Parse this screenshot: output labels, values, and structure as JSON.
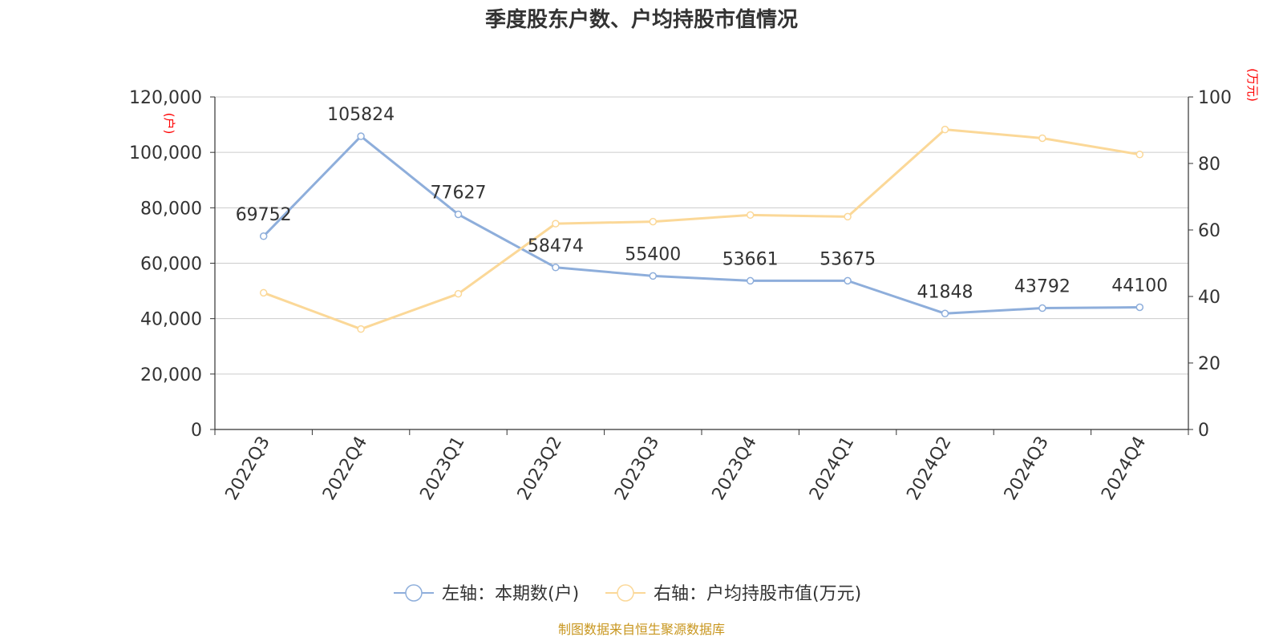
{
  "chart_data": {
    "type": "line",
    "title": "季度股东户数、户均持股市值情况",
    "categories": [
      "2022Q3",
      "2022Q4",
      "2023Q1",
      "2023Q2",
      "2023Q3",
      "2023Q4",
      "2024Q1",
      "2024Q2",
      "2024Q3",
      "2024Q4"
    ],
    "left_axis": {
      "unit": "(户)",
      "ylim": [
        0,
        120000
      ],
      "ticks": [
        "0",
        "20,000",
        "40,000",
        "60,000",
        "80,000",
        "100,000",
        "120,000"
      ]
    },
    "right_axis": {
      "unit": "(万元)",
      "ylim": [
        0,
        100
      ],
      "ticks": [
        "0",
        "20",
        "40",
        "60",
        "80",
        "100"
      ]
    },
    "series": [
      {
        "name": "左轴：本期数(户)",
        "axis": "left",
        "color": "#8eaedb",
        "values": [
          69752,
          105824,
          77627,
          58474,
          55400,
          53661,
          53675,
          41848,
          43792,
          44100
        ],
        "labels": [
          "69752",
          "105824",
          "77627",
          "58474",
          "55400",
          "53661",
          "53675",
          "41848",
          "43792",
          "44100"
        ]
      },
      {
        "name": "右轴：户均持股市值(万元)",
        "axis": "right",
        "color": "#fbd898",
        "values": [
          41.1,
          30.2,
          40.8,
          61.9,
          62.5,
          64.5,
          64.0,
          90.2,
          87.6,
          82.7
        ]
      }
    ],
    "grid": true,
    "legend_position": "bottom-center"
  },
  "footer": {
    "source": "制图数据来自恒生聚源数据库"
  },
  "colors": {
    "title": "#333333",
    "axis_text": "#333333",
    "unit_text": "#ff0000",
    "source_text": "#c8961e",
    "grid": "#cccccc",
    "axis_line": "#333333"
  }
}
